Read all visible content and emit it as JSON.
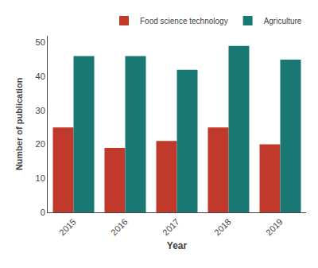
{
  "chart_data": {
    "type": "bar",
    "categories": [
      "2015",
      "2016",
      "2017",
      "2018",
      "2019"
    ],
    "series": [
      {
        "name": "Food science technology",
        "color": "#C0392B",
        "values": [
          25,
          19,
          21,
          25,
          20
        ]
      },
      {
        "name": "Agriculture",
        "color": "#1A7874",
        "values": [
          46,
          46,
          42,
          49,
          45
        ]
      }
    ],
    "xlabel": "Year",
    "ylabel": "Number of publication",
    "ylim": [
      0,
      52
    ],
    "yticks": [
      0,
      10,
      20,
      30,
      40,
      50
    ],
    "grid": false,
    "legend": "upper right"
  }
}
